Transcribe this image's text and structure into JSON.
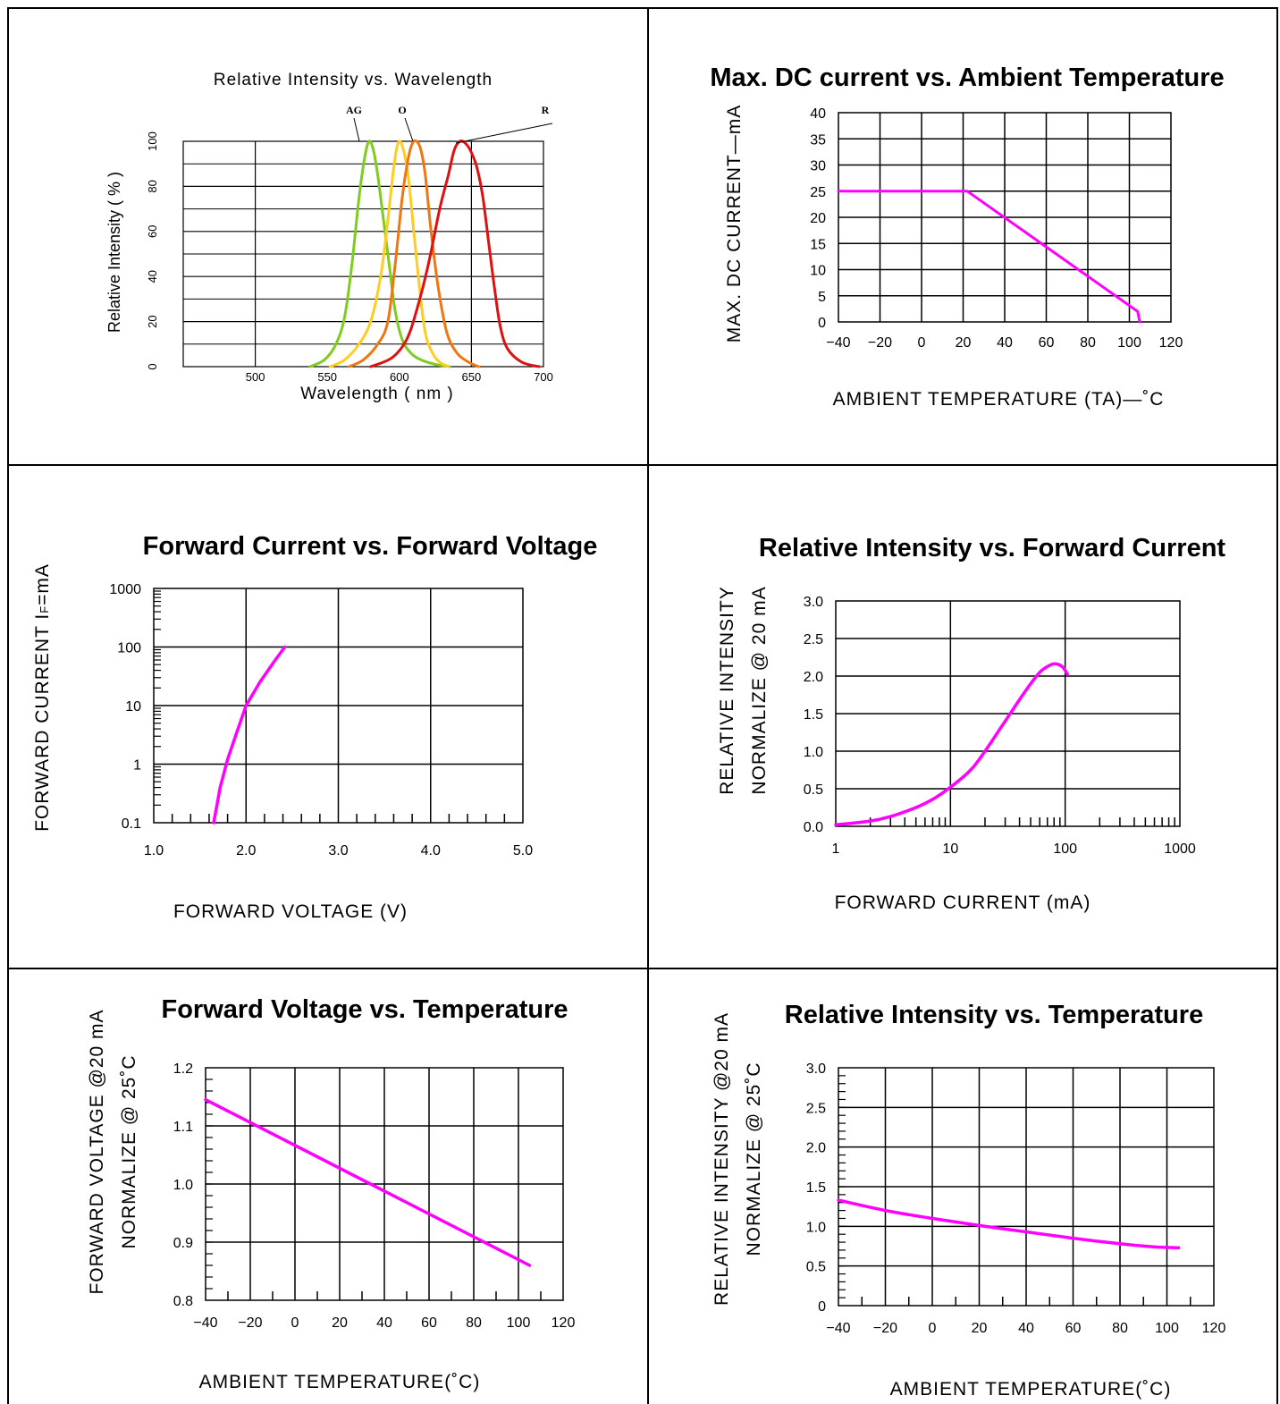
{
  "colors": {
    "curve": "#ff00ff",
    "grid": "#000000",
    "ag": "#7fcc1e",
    "o1": "#ffcc22",
    "o2": "#ee7711",
    "r": "#dd1111"
  },
  "chart_data": [
    {
      "id": "spectrum",
      "type": "line",
      "title": "Relative Intensity vs. Wavelength",
      "xlabel": "Wavelength ( nm )",
      "ylabel": "Relative Intensity ( % )",
      "xlim": [
        450,
        700
      ],
      "ylim": [
        0,
        100
      ],
      "xticks": [
        "500",
        "550",
        "600",
        "650",
        "700"
      ],
      "yticks": [
        "0",
        "20",
        "40",
        "60",
        "80",
        "100"
      ],
      "annotations": [
        "AG",
        "O",
        "R"
      ],
      "series": [
        {
          "name": "AG",
          "color": "ag",
          "x": [
            538,
            548,
            556,
            562,
            567,
            572,
            576,
            579,
            582,
            585,
            589,
            593,
            597,
            602,
            608,
            615,
            625,
            635
          ],
          "y": [
            0,
            3,
            10,
            22,
            45,
            75,
            93,
            100,
            96,
            85,
            65,
            45,
            25,
            12,
            6,
            3,
            1,
            0
          ]
        },
        {
          "name": "",
          "color": "o1",
          "x": [
            552,
            562,
            572,
            580,
            587,
            592,
            596,
            599,
            602,
            606,
            610,
            614,
            618,
            623,
            628,
            634
          ],
          "y": [
            0,
            3,
            10,
            20,
            40,
            65,
            88,
            99,
            98,
            85,
            60,
            35,
            15,
            6,
            2,
            0
          ]
        },
        {
          "name": "O",
          "color": "o2",
          "x": [
            565,
            575,
            585,
            592,
            597,
            602,
            606,
            609,
            612,
            615,
            618,
            622,
            627,
            633,
            640,
            648,
            655
          ],
          "y": [
            0,
            3,
            10,
            20,
            45,
            75,
            92,
            99,
            100,
            96,
            85,
            60,
            35,
            15,
            6,
            2,
            0
          ]
        },
        {
          "name": "R",
          "color": "r",
          "x": [
            580,
            595,
            605,
            612,
            620,
            628,
            634,
            638,
            642,
            646,
            650,
            654,
            658,
            662,
            666,
            670,
            675,
            685,
            697
          ],
          "y": [
            0,
            4,
            12,
            25,
            45,
            70,
            85,
            96,
            100,
            99,
            95,
            88,
            75,
            55,
            35,
            18,
            8,
            2,
            0
          ]
        }
      ]
    },
    {
      "id": "maxdc",
      "type": "line",
      "title": "Max. DC current vs. Ambient Temperature",
      "xlabel": "AMBIENT  TEMPERATURE  (TA)—˚C",
      "ylabel": "MAX.  DC  CURRENT—mA",
      "xlim": [
        -40,
        120
      ],
      "ylim": [
        0,
        40
      ],
      "xticks": [
        "−40",
        "−20",
        "0",
        "20",
        "40",
        "60",
        "80",
        "100",
        "120"
      ],
      "yticks": [
        "0",
        "5",
        "10",
        "15",
        "20",
        "25",
        "30",
        "35",
        "40"
      ],
      "series": [
        {
          "x": [
            -40,
            22,
            104,
            105
          ],
          "y": [
            25,
            25,
            2,
            0
          ]
        }
      ]
    },
    {
      "id": "ifvf",
      "type": "line",
      "title": "Forward Current vs. Forward Voltage",
      "xlabel": "FORWARD  VOLTAGE  (V)",
      "ylabel": "FORWARD  CURRENT  I",
      "ylabel_sub": "F",
      "ylabel_tail": "=mA",
      "xlim": [
        1.0,
        5.0
      ],
      "ylim": [
        0.1,
        1000
      ],
      "yscale": "log",
      "xticks": [
        "1.0",
        "2.0",
        "3.0",
        "4.0",
        "5.0"
      ],
      "yticks": [
        "0.1",
        "1",
        "10",
        "100",
        "1000"
      ],
      "series": [
        {
          "x": [
            1.65,
            1.72,
            1.8,
            1.9,
            2.0,
            2.15,
            2.3,
            2.42
          ],
          "y": [
            0.1,
            0.4,
            1.2,
            3.5,
            10,
            25,
            55,
            100
          ]
        }
      ]
    },
    {
      "id": "iv_if",
      "type": "line",
      "title": "Relative Intensity vs. Forward Current",
      "xlabel": "FORWARD  CURRENT  (mA)",
      "ylabel": "RELATIVE  INTENSITY",
      "ylabel2": "NORMALIZE  @  20  mA",
      "xlim": [
        1,
        1000
      ],
      "xscale": "log",
      "ylim": [
        0,
        3.0
      ],
      "xticks": [
        "1",
        "10",
        "100",
        "1000"
      ],
      "yticks": [
        "0.0",
        "0.5",
        "1.0",
        "1.5",
        "2.0",
        "2.5",
        "3.0"
      ],
      "series": [
        {
          "x": [
            1,
            2,
            3,
            5,
            7,
            10,
            15,
            20,
            30,
            45,
            60,
            75,
            85,
            95,
            105
          ],
          "y": [
            0.02,
            0.07,
            0.13,
            0.25,
            0.36,
            0.52,
            0.75,
            1.0,
            1.4,
            1.8,
            2.05,
            2.15,
            2.16,
            2.12,
            2.02
          ]
        }
      ]
    },
    {
      "id": "vf_temp",
      "type": "line",
      "title": "Forward Voltage vs. Temperature",
      "xlabel": "AMBIENT  TEMPERATURE(˚C)",
      "ylabel": "FORWARD  VOLTAGE  @20  mA",
      "ylabel2": "NORMALIZE  @  25˚C",
      "xlim": [
        -40,
        120
      ],
      "ylim": [
        0.8,
        1.2
      ],
      "xticks": [
        "−40",
        "−20",
        "0",
        "20",
        "40",
        "60",
        "80",
        "100",
        "120"
      ],
      "yticks": [
        "0.8",
        "0.9",
        "1.0",
        "1.1",
        "1.2"
      ],
      "series": [
        {
          "x": [
            -40,
            105
          ],
          "y": [
            1.145,
            0.86
          ]
        }
      ]
    },
    {
      "id": "iv_temp",
      "type": "line",
      "title": "Relative Intensity vs. Temperature",
      "xlabel": "AMBIENT  TEMPERATURE(˚C)",
      "ylabel": "RELATIVE  INTENSITY  @20  mA",
      "ylabel2": "NORMALIZE  @  25˚C",
      "xlim": [
        -40,
        120
      ],
      "ylim": [
        0,
        3.0
      ],
      "xticks": [
        "−40",
        "−20",
        "0",
        "20",
        "40",
        "60",
        "80",
        "100",
        "120"
      ],
      "yticks": [
        "0",
        "0.5",
        "1.0",
        "1.5",
        "2.0",
        "2.5",
        "3.0"
      ],
      "series": [
        {
          "x": [
            -40,
            -20,
            0,
            20,
            40,
            60,
            80,
            95,
            105
          ],
          "y": [
            1.33,
            1.2,
            1.1,
            1.01,
            0.93,
            0.85,
            0.78,
            0.74,
            0.73
          ]
        }
      ]
    }
  ]
}
